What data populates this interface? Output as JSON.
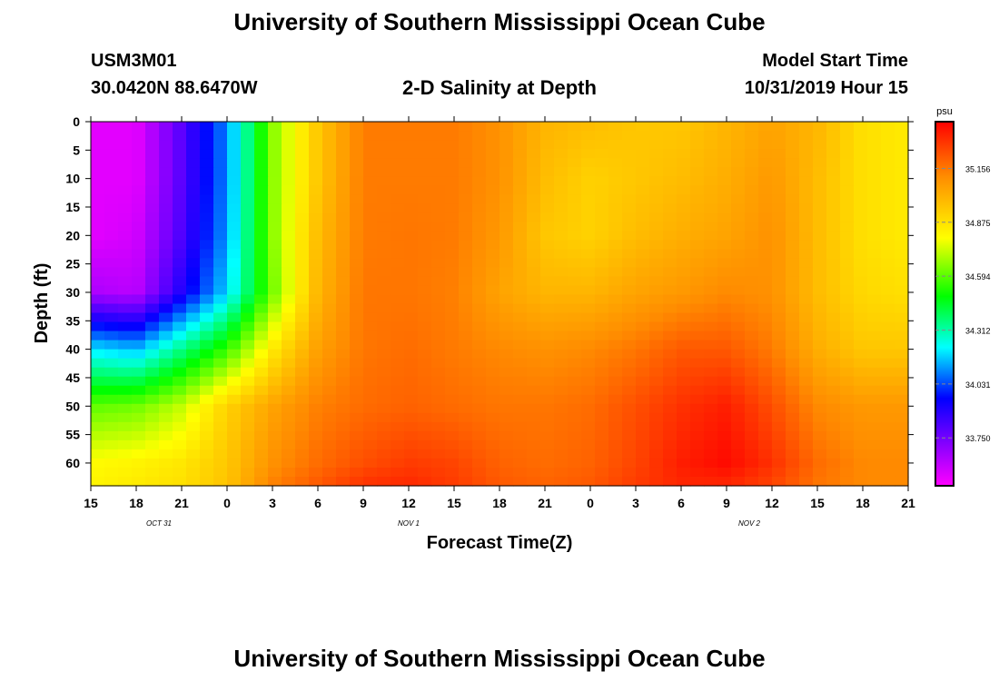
{
  "header": {
    "title": "University of Southern Mississippi Ocean Cube",
    "station_id": "USM3M01",
    "location": "30.0420N 88.6470W",
    "plot_title": "2-D Salinity at Depth",
    "model_start_label": "Model Start Time",
    "model_start_value": "10/31/2019 Hour 15"
  },
  "footer": {
    "title": "University of Southern Mississippi Ocean Cube"
  },
  "colors": {
    "palette": [
      "#ff00ff",
      "#0000ff",
      "#00ffff",
      "#00ff00",
      "#ffff00",
      "#ff8c00",
      "#ff0000"
    ]
  },
  "chart_data": {
    "type": "heatmap",
    "title": "2-D Salinity at Depth",
    "xlabel": "Forecast Time(Z)",
    "ylabel": "Depth (ft)",
    "x_ticks": [
      "15",
      "18",
      "21",
      "0",
      "3",
      "6",
      "9",
      "12",
      "15",
      "18",
      "21",
      "0",
      "3",
      "6",
      "9",
      "12",
      "15",
      "18",
      "21"
    ],
    "x_range_hours": [
      0,
      54
    ],
    "date_labels": [
      {
        "text": "OCT 31",
        "hour": 4.5
      },
      {
        "text": "NOV 1",
        "hour": 21
      },
      {
        "text": "NOV 2",
        "hour": 43.5
      }
    ],
    "y_ticks": [
      0,
      5,
      10,
      15,
      20,
      25,
      30,
      35,
      40,
      45,
      50,
      55,
      60
    ],
    "ylim": [
      0,
      64
    ],
    "colorbar": {
      "unit": "psu",
      "labels": [
        "35.156",
        "34.875",
        "34.594",
        "34.312",
        "34.031",
        "33.750"
      ],
      "min": 33.5,
      "max": 35.4
    },
    "depths": [
      0,
      10,
      20,
      30,
      40,
      50,
      60,
      64
    ],
    "hours": [
      0,
      3,
      6,
      9,
      12,
      15,
      18,
      21,
      24,
      27,
      30,
      33,
      36,
      39,
      42,
      45,
      48,
      51,
      54
    ],
    "salinity": [
      [
        33.55,
        33.55,
        33.8,
        34.1,
        34.65,
        34.95,
        35.15,
        35.15,
        35.15,
        35.1,
        35.0,
        34.98,
        34.95,
        34.95,
        35.0,
        35.05,
        35.0,
        34.88,
        34.85
      ],
      [
        33.55,
        33.55,
        33.8,
        34.1,
        34.65,
        34.95,
        35.15,
        35.15,
        35.15,
        35.1,
        34.98,
        34.92,
        34.95,
        34.98,
        35.02,
        35.08,
        34.98,
        34.88,
        34.85
      ],
      [
        33.55,
        33.58,
        33.82,
        34.12,
        34.65,
        34.98,
        35.15,
        35.16,
        35.15,
        35.08,
        34.95,
        34.92,
        34.98,
        35.02,
        35.05,
        35.1,
        34.98,
        34.88,
        34.85
      ],
      [
        33.65,
        33.62,
        33.9,
        34.18,
        34.62,
        35.0,
        35.16,
        35.16,
        35.14,
        35.05,
        35.0,
        35.0,
        35.05,
        35.08,
        35.12,
        35.1,
        34.98,
        34.9,
        34.88
      ],
      [
        34.2,
        34.15,
        34.35,
        34.55,
        34.85,
        35.06,
        35.16,
        35.18,
        35.15,
        35.12,
        35.1,
        35.12,
        35.16,
        35.22,
        35.22,
        35.15,
        35.02,
        34.95,
        34.95
      ],
      [
        34.6,
        34.62,
        34.72,
        34.92,
        35.05,
        35.14,
        35.18,
        35.2,
        35.18,
        35.16,
        35.16,
        35.18,
        35.24,
        35.3,
        35.34,
        35.24,
        35.12,
        35.08,
        35.08
      ],
      [
        34.8,
        34.82,
        34.86,
        34.95,
        35.1,
        35.18,
        35.24,
        35.28,
        35.26,
        35.2,
        35.18,
        35.2,
        35.26,
        35.34,
        35.38,
        35.3,
        35.18,
        35.12,
        35.12
      ],
      [
        34.82,
        34.85,
        34.88,
        34.96,
        35.14,
        35.22,
        35.3,
        35.32,
        35.28,
        35.22,
        35.2,
        35.22,
        35.28,
        35.32,
        35.32,
        35.26,
        35.16,
        35.12,
        35.12
      ]
    ]
  }
}
